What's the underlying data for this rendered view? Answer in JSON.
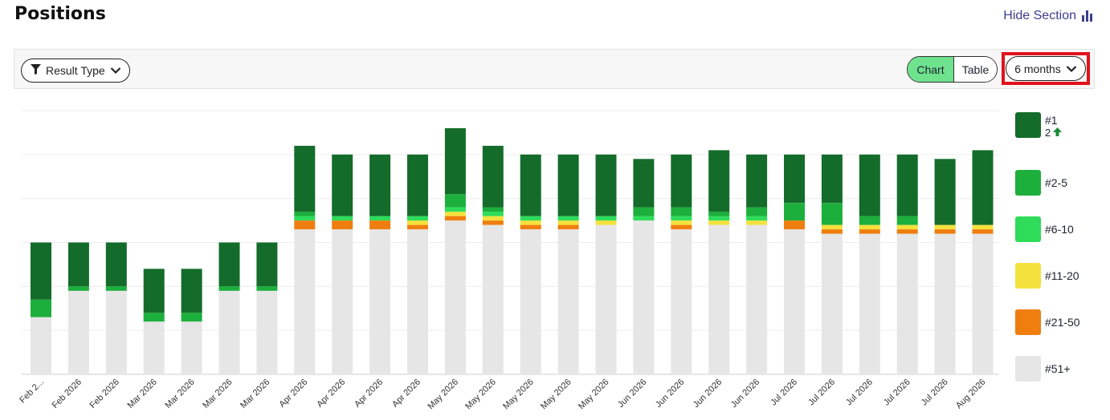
{
  "page": {
    "title": "Positions",
    "hide_section_label": "Hide Section"
  },
  "toolbar": {
    "result_type_label": "Result Type",
    "view_chart_label": "Chart",
    "view_table_label": "Table",
    "range_label": "6 months"
  },
  "colors": {
    "p1": "#146c2a",
    "p2_5": "#1caf3c",
    "p6_10": "#2edc5a",
    "p11_20": "#f5e13d",
    "p21_50": "#ef7e0e",
    "p51_plus": "#e6e6e6",
    "active_toggle": "#6ee28d",
    "highlight_box": "#e0121b",
    "link": "#3d3d8f"
  },
  "legend": [
    {
      "key": "p1",
      "label": "#1",
      "sub": "2",
      "sub_icon": "arrow-up-icon"
    },
    {
      "key": "p2_5",
      "label": "#2-5"
    },
    {
      "key": "p6_10",
      "label": "#6-10"
    },
    {
      "key": "p11_20",
      "label": "#11-20"
    },
    {
      "key": "p21_50",
      "label": "#21-50"
    },
    {
      "key": "p51_plus",
      "label": "#51+"
    }
  ],
  "chart_data": {
    "type": "bar",
    "stacked": true,
    "title": "",
    "xlabel": "",
    "ylabel": "",
    "grid": true,
    "legend_position": "right",
    "ylim": [
      0,
      60
    ],
    "categories": [
      "Feb 2...",
      "Feb 2026",
      "Feb 2026",
      "Mar 2026",
      "Mar 2026",
      "Mar 2026",
      "Mar 2026",
      "Apr 2026",
      "Apr 2026",
      "Apr 2026",
      "Apr 2026",
      "May 2026",
      "May 2026",
      "May 2026",
      "May 2026",
      "May 2026",
      "Jun 2026",
      "Jun 2026",
      "Jun 2026",
      "Jun 2026",
      "Jul 2026",
      "Jul 2026",
      "Jul 2026",
      "Jul 2026",
      "Jul 2026",
      "Aug 2026"
    ],
    "series": [
      {
        "name": "#51+",
        "key": "p51_plus",
        "values": [
          13,
          19,
          19,
          12,
          12,
          19,
          19,
          33,
          33,
          33,
          33,
          35,
          34,
          33,
          33,
          34,
          35,
          33,
          34,
          34,
          33,
          32,
          32,
          32,
          32,
          32
        ]
      },
      {
        "name": "#21-50",
        "key": "p21_50",
        "values": [
          0,
          0,
          0,
          0,
          0,
          0,
          0,
          2,
          2,
          2,
          1,
          1,
          1,
          1,
          1,
          0,
          0,
          1,
          0,
          0,
          2,
          1,
          1,
          1,
          1,
          1
        ]
      },
      {
        "name": "#11-20",
        "key": "p11_20",
        "values": [
          0,
          0,
          0,
          0,
          0,
          0,
          0,
          0,
          0,
          0,
          1,
          1,
          1,
          1,
          1,
          1,
          0,
          1,
          1,
          1,
          0,
          1,
          1,
          1,
          1,
          1
        ]
      },
      {
        "name": "#6-10",
        "key": "p6_10",
        "values": [
          0,
          0,
          0,
          0,
          0,
          0,
          0,
          1,
          1,
          1,
          1,
          1,
          1,
          1,
          1,
          1,
          1,
          1,
          1,
          1,
          0,
          0,
          0,
          0,
          0,
          0
        ]
      },
      {
        "name": "#2-5",
        "key": "p2_5",
        "values": [
          4,
          1,
          1,
          2,
          2,
          1,
          1,
          1,
          0,
          0,
          0,
          3,
          1,
          0,
          0,
          0,
          2,
          2,
          1,
          2,
          4,
          5,
          2,
          2,
          0,
          0
        ]
      },
      {
        "name": "#1",
        "key": "p1",
        "values": [
          13,
          10,
          10,
          10,
          10,
          10,
          10,
          15,
          14,
          14,
          14,
          15,
          14,
          14,
          14,
          14,
          11,
          12,
          14,
          12,
          11,
          11,
          14,
          14,
          15,
          17
        ]
      }
    ]
  }
}
